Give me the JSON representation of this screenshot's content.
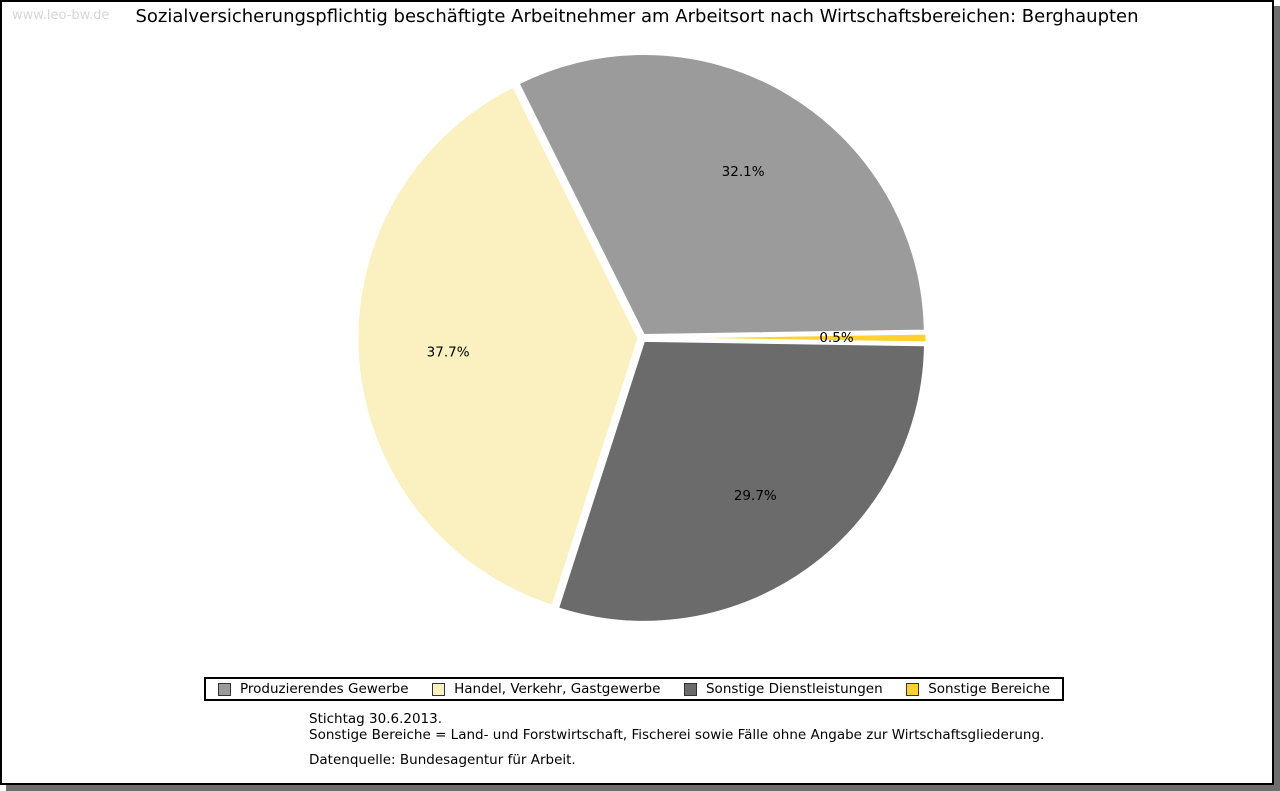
{
  "watermark": "www.leo-bw.de",
  "title": "Sozialversicherungspflichtig beschäftigte Arbeitnehmer am Arbeitsort nach Wirtschaftsbereichen: Berghaupten",
  "chart_data": {
    "type": "pie",
    "title": "Sozialversicherungspflichtig beschäftigte Arbeitnehmer am Arbeitsort nach Wirtschaftsbereichen: Berghaupten",
    "unit": "percent",
    "legend_position": "bottom",
    "slices": [
      {
        "label": "Produzierendes Gewerbe",
        "value": 32.1,
        "display": "32.1%",
        "color": "#9b9b9b"
      },
      {
        "label": "Handel, Verkehr, Gastgewerbe",
        "value": 37.7,
        "display": "37.7%",
        "color": "#faf0c0"
      },
      {
        "label": "Sonstige Dienstleistungen",
        "value": 29.7,
        "display": "29.7%",
        "color": "#6b6b6b"
      },
      {
        "label": "Sonstige Bereiche",
        "value": 0.5,
        "display": "0.5%",
        "color": "#ffd232"
      }
    ]
  },
  "footnotes": {
    "line1": "Stichtag 30.6.2013.",
    "line2": "Sonstige Bereiche = Land- und Forstwirtschaft, Fischerei sowie Fälle ohne Angabe zur Wirtschaftsgliederung.",
    "source": "Datenquelle: Bundesagentur für Arbeit."
  }
}
